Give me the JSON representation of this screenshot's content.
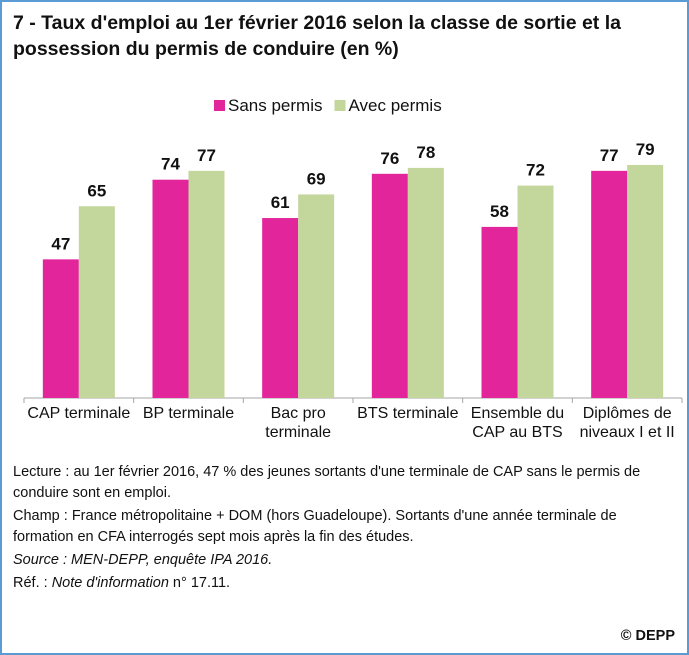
{
  "chart_data": {
    "type": "bar",
    "title": "7 - Taux d'emploi au 1er février 2016 selon la classe de sortie et la possession du permis de conduire (en %)",
    "categories": [
      "CAP terminale",
      "BP terminale",
      "Bac pro terminale",
      "BTS terminale",
      "Ensemble du CAP au BTS",
      "Diplômes de niveaux I et II"
    ],
    "series": [
      {
        "name": "Sans permis",
        "color": "#e2259b",
        "values": [
          47,
          74,
          61,
          76,
          58,
          77
        ]
      },
      {
        "name": "Avec permis",
        "color": "#c3d69b",
        "values": [
          65,
          77,
          69,
          78,
          72,
          79
        ]
      }
    ],
    "legend": "top",
    "notes": {
      "lecture": "Lecture : au 1er février 2016, 47 % des jeunes sortants d'une terminale de CAP sans le permis de conduire sont en emploi.",
      "champ": "Champ : France métropolitaine + DOM (hors Guadeloupe). Sortants d'une année terminale de formation en CFA interrogés sept mois après la fin des études.",
      "source": "Source : MEN-DEPP, enquête IPA 2016.",
      "ref": [
        "Réf. : ",
        "Note d'information",
        " n° 17.11."
      ],
      "copyright": "© DEPP"
    }
  }
}
